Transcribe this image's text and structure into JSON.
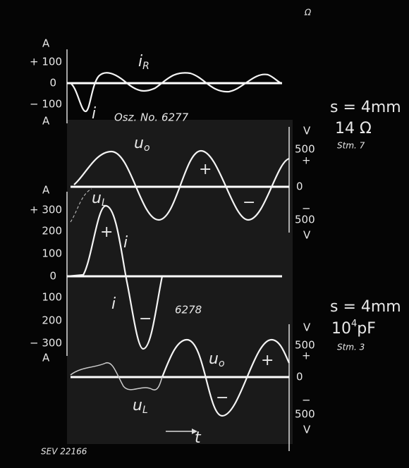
{
  "top_mark": "Ω",
  "scope1": {
    "current_axis": {
      "unit_top": "A",
      "ticks": [
        "+ 100",
        "0",
        "− 100"
      ],
      "unit_bottom": "A"
    },
    "labels": {
      "iR": {
        "main": "i",
        "sub": "R"
      },
      "i": "i",
      "title": "Osz. No. 6277"
    },
    "voltage_axis": {
      "unit_top": "V",
      "ticks": [
        "500",
        "+",
        "0",
        "−",
        "500"
      ],
      "unit_bottom": "V"
    },
    "voltage_labels": {
      "u0": {
        "main": "u",
        "sub": "o"
      },
      "uL": {
        "main": "u",
        "sub": "L"
      },
      "plus": "+",
      "minus": "−"
    },
    "notes": {
      "gap": "s = 4mm",
      "value": "14 Ω",
      "stm": "Stm. 7"
    }
  },
  "scope2": {
    "current_axis": {
      "unit_top": "A",
      "ticks": [
        "+ 300",
        "200",
        "100",
        "0",
        "100",
        "200",
        "− 300"
      ],
      "unit_bottom": "A"
    },
    "labels": {
      "i_top": "i",
      "i_bottom": "i",
      "plus": "+",
      "minus": "−",
      "title": "6278"
    },
    "voltage_axis": {
      "unit_top": "V",
      "ticks": [
        "500",
        "+",
        "0",
        "−",
        "500"
      ],
      "unit_bottom": "V"
    },
    "voltage_labels": {
      "u0": {
        "main": "u",
        "sub": "o"
      },
      "uL": {
        "main": "u",
        "sub": "L"
      },
      "plus": "+",
      "minus": "−"
    },
    "notes": {
      "gap": "s = 4mm",
      "value": {
        "main": "10",
        "sup": "4",
        "rest": "pF"
      },
      "stm": "Stm. 3"
    }
  },
  "time_label": "t",
  "reference": "SEV 22166"
}
